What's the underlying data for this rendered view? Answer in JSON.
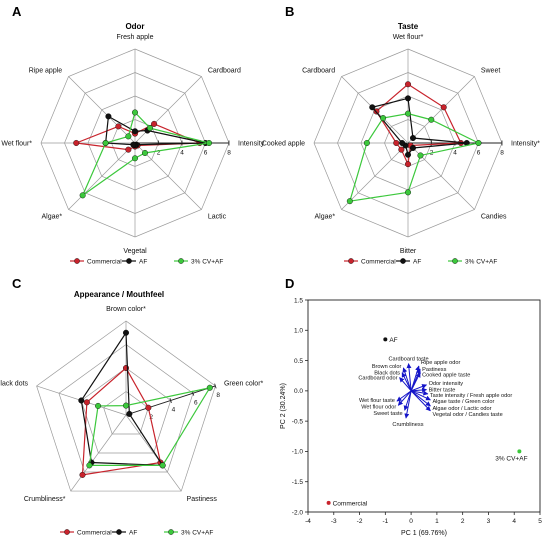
{
  "colors": {
    "Commercial": "#c8232c",
    "AF": "#111111",
    "3% CV+AF": "#3cc83c",
    "biplot_arrows": "#1414c8",
    "grid": "#9a9a9a"
  },
  "chart_data": [
    {
      "panel": "A",
      "type": "radar",
      "title": "Odor",
      "axes": [
        "Fresh apple",
        "Cardboard",
        "Intensity",
        "Lactic",
        "Vegetal",
        "Algae*",
        "Wet flour*",
        "Ripe apple"
      ],
      "range": [
        0,
        8
      ],
      "ticks": [
        "2",
        "4",
        "6",
        "8"
      ],
      "series": [
        {
          "name": "Commercial",
          "values": [
            0.8,
            2.3,
            5.5,
            0.3,
            0.3,
            0.8,
            5.0,
            2.0
          ]
        },
        {
          "name": "AF",
          "values": [
            1.0,
            1.5,
            6.0,
            0.2,
            0.2,
            0.2,
            2.5,
            3.2
          ]
        },
        {
          "name": "3% CV+AF",
          "values": [
            2.6,
            1.8,
            6.3,
            1.2,
            1.3,
            6.3,
            2.5,
            0.8
          ]
        }
      ]
    },
    {
      "panel": "B",
      "type": "radar",
      "title": "Taste",
      "axes": [
        "Wet flour*",
        "Sweet",
        "Intensity*",
        "Candies",
        "Bitter",
        "Algae*",
        "Cooked apple",
        "Cardboard"
      ],
      "range": [
        0,
        8
      ],
      "ticks": [
        "2",
        "4",
        "6",
        "8"
      ],
      "series": [
        {
          "name": "Commercial",
          "values": [
            5.0,
            4.3,
            4.5,
            0.3,
            1.8,
            0.8,
            1.0,
            3.8
          ]
        },
        {
          "name": "AF",
          "values": [
            3.8,
            0.6,
            5.0,
            0.6,
            1.0,
            0.3,
            0.5,
            4.3
          ]
        },
        {
          "name": "3% CV+AF",
          "values": [
            2.5,
            2.8,
            6.0,
            1.5,
            4.2,
            7.0,
            3.5,
            3.0
          ]
        }
      ]
    },
    {
      "panel": "C",
      "type": "radar",
      "title": "Appearance / Mouthfeel",
      "axes": [
        "Brown color*",
        "Green color*",
        "Pastiness",
        "Crumbliness*",
        "Black dots"
      ],
      "range": [
        0,
        8
      ],
      "ticks": [
        "2",
        "4",
        "6",
        "8"
      ],
      "series": [
        {
          "name": "Commercial",
          "values": [
            4.0,
            2.0,
            5.0,
            6.3,
            3.5
          ]
        },
        {
          "name": "AF",
          "values": [
            7.0,
            0.3,
            5.3,
            5.0,
            4.0
          ]
        },
        {
          "name": "3% CV+AF",
          "values": [
            0.8,
            7.5,
            5.3,
            5.3,
            2.5
          ]
        }
      ]
    },
    {
      "panel": "D",
      "type": "scatter",
      "xlabel": "PC 1 (69.76%)",
      "ylabel": "PC 2 (30.24%)",
      "xlim": [
        -4,
        5
      ],
      "ylim": [
        -2,
        1.5
      ],
      "xticks": [
        "-4",
        "-3",
        "-2",
        "-1",
        "0",
        "1",
        "2",
        "3",
        "4",
        "5"
      ],
      "yticks": [
        "-2.0",
        "-1.5",
        "-1.0",
        "-0.5",
        "0.0",
        "0.5",
        "1.0",
        "1.5"
      ],
      "points": [
        {
          "name": "AF",
          "x": -1.0,
          "y": 0.85
        },
        {
          "name": "3% CV+AF",
          "x": 4.2,
          "y": -1.0
        },
        {
          "name": "Commercial",
          "x": -3.2,
          "y": -1.85
        }
      ],
      "vectors": [
        {
          "label": "Cardboard taste",
          "x": -0.1,
          "y": 0.45
        },
        {
          "label": "Ripe apple odor",
          "x": 0.3,
          "y": 0.41
        },
        {
          "label": "Pastiness",
          "x": 0.35,
          "y": 0.36
        },
        {
          "label": "Brown color",
          "x": -0.3,
          "y": 0.38
        },
        {
          "label": "Cooked apple taste",
          "x": 0.35,
          "y": 0.3
        },
        {
          "label": "Black dots",
          "x": -0.35,
          "y": 0.3
        },
        {
          "label": "Cardboard odor",
          "x": -0.45,
          "y": 0.22
        },
        {
          "label": "Odor intensity",
          "x": 0.6,
          "y": 0.1
        },
        {
          "label": "Bitter taste",
          "x": 0.6,
          "y": 0.02
        },
        {
          "label": "Taste intensity / Fresh apple odor",
          "x": 0.65,
          "y": -0.05
        },
        {
          "label": "Algae taste / Green color",
          "x": 0.75,
          "y": -0.15
        },
        {
          "label": "Algae odor / Lactic odor",
          "x": 0.75,
          "y": -0.25
        },
        {
          "label": "Vegetal odor / Candies taste",
          "x": 0.75,
          "y": -0.33
        },
        {
          "label": "Wet flour taste",
          "x": -0.55,
          "y": -0.17
        },
        {
          "label": "Wet flour odor",
          "x": -0.5,
          "y": -0.24
        },
        {
          "label": "Sweet taste",
          "x": -0.25,
          "y": -0.32
        },
        {
          "label": "Crumbliness",
          "x": -0.2,
          "y": -0.45
        }
      ]
    }
  ],
  "legend": [
    "Commercial",
    "AF",
    "3% CV+AF"
  ]
}
